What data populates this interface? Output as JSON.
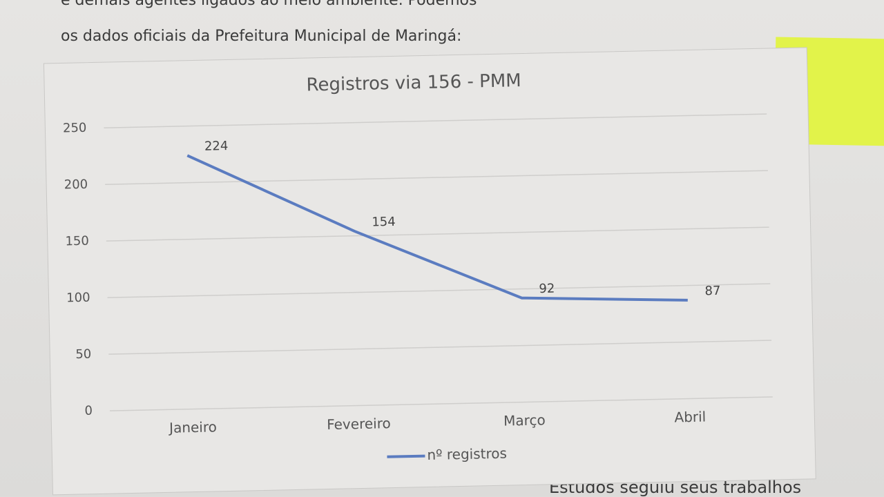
{
  "document": {
    "line_top": "e demais agentes ligados ao meio ambiente. Podemos",
    "line_intro": "os dados oficiais da Prefeitura Municipal de Maringá:",
    "line_bottom": "Estudos seguiu seus trabalhos"
  },
  "chart_data": {
    "type": "line",
    "title": "Registros via 156 - PMM",
    "categories": [
      "Janeiro",
      "Fevereiro",
      "Março",
      "Abril"
    ],
    "series": [
      {
        "name": "nº registros",
        "color": "#5b7cc0",
        "values": [
          224,
          154,
          92,
          87
        ]
      }
    ],
    "ylim": [
      0,
      250
    ],
    "yticks": [
      0,
      50,
      100,
      150,
      200,
      250
    ],
    "grid": true,
    "legend": "bottom"
  }
}
